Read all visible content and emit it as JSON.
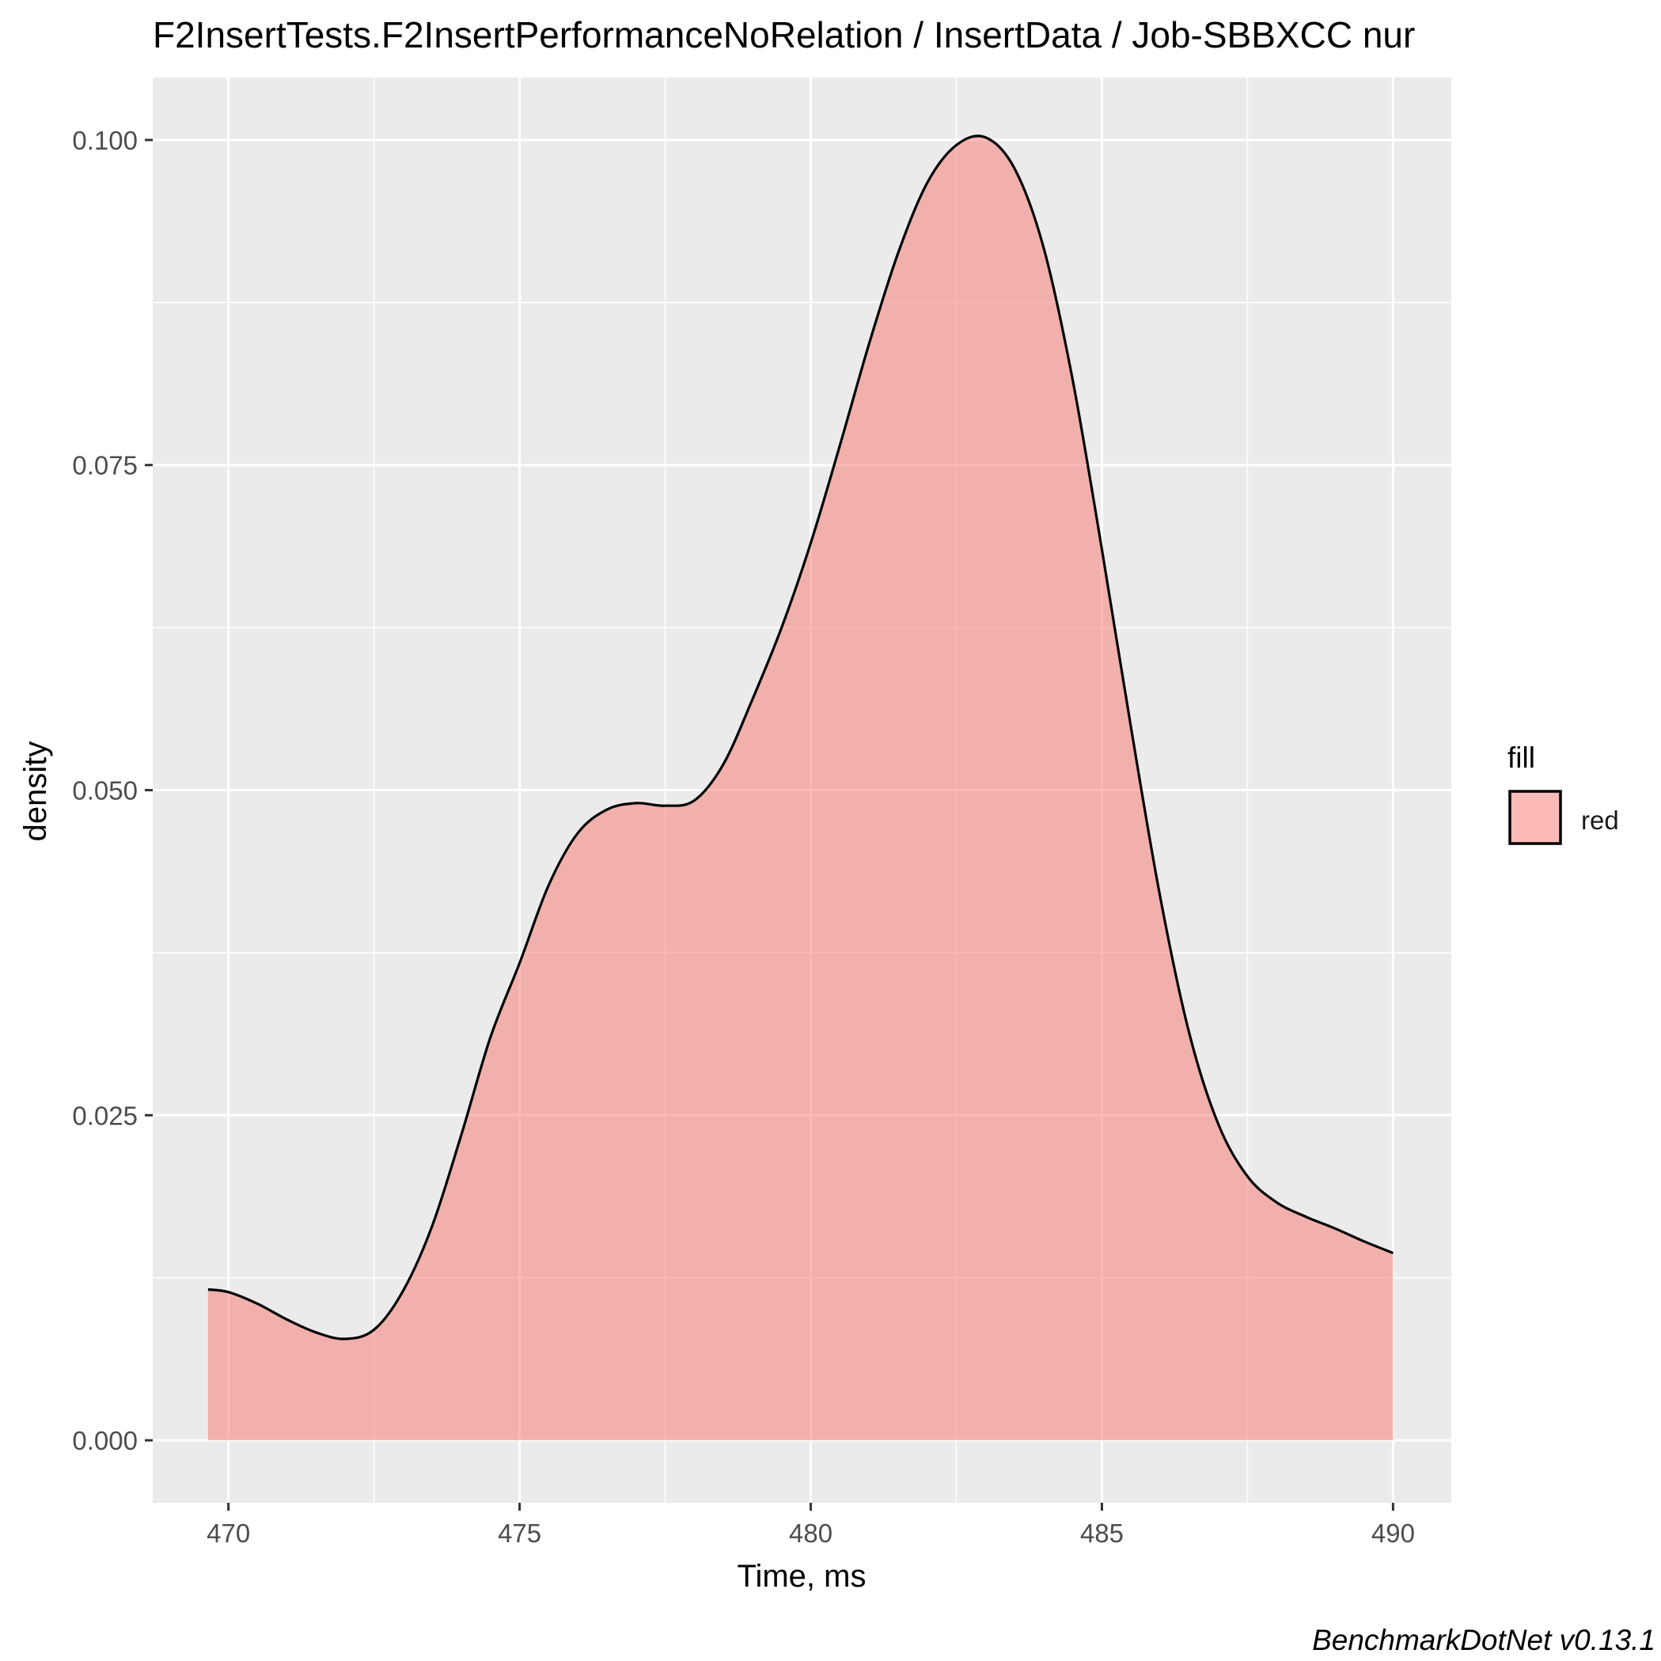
{
  "chart_data": {
    "type": "area",
    "title": "F2InsertTests.F2InsertPerformanceNoRelation / InsertData / Job-SBBXCC nur",
    "xlabel": "Time, ms",
    "ylabel": "density",
    "caption": "BenchmarkDotNet v0.13.1",
    "xlim": [
      468.7,
      491.0
    ],
    "ylim": [
      -0.0048,
      0.1048
    ],
    "x_ticks": [
      470,
      475,
      480,
      485,
      490
    ],
    "x_tick_labels": [
      "470",
      "475",
      "480",
      "485",
      "490"
    ],
    "y_ticks": [
      0.0,
      0.025,
      0.05,
      0.075,
      0.1
    ],
    "y_tick_labels": [
      "0.000",
      "0.025",
      "0.050",
      "0.075",
      "0.100"
    ],
    "grid": true,
    "legend": {
      "title": "fill",
      "placement": "right",
      "entries": [
        {
          "label": "red",
          "color": "#f8766d"
        }
      ]
    },
    "series": [
      {
        "fill": "#f8766d",
        "fill_opacity": 0.5,
        "stroke": "#000000",
        "x": [
          469.65,
          470.0,
          470.5,
          471.0,
          471.5,
          472.0,
          472.5,
          473.0,
          473.5,
          474.0,
          474.5,
          475.0,
          475.5,
          476.0,
          476.5,
          477.0,
          477.5,
          478.0,
          478.5,
          479.0,
          479.5,
          480.0,
          480.5,
          481.0,
          481.5,
          482.0,
          482.5,
          483.0,
          483.5,
          484.0,
          484.5,
          485.0,
          485.5,
          486.0,
          486.5,
          487.0,
          487.5,
          488.0,
          488.5,
          489.0,
          489.5,
          490.0
        ],
        "y": [
          0.0116,
          0.0114,
          0.0105,
          0.0093,
          0.0083,
          0.0078,
          0.0085,
          0.0115,
          0.0165,
          0.0235,
          0.031,
          0.0367,
          0.0427,
          0.0467,
          0.0485,
          0.049,
          0.0488,
          0.0492,
          0.052,
          0.057,
          0.0625,
          0.069,
          0.0765,
          0.0843,
          0.0913,
          0.0967,
          0.0996,
          0.1002,
          0.0978,
          0.0917,
          0.0815,
          0.0685,
          0.0548,
          0.0418,
          0.0313,
          0.0243,
          0.0203,
          0.0183,
          0.0172,
          0.0163,
          0.0153,
          0.0144
        ]
      }
    ]
  }
}
